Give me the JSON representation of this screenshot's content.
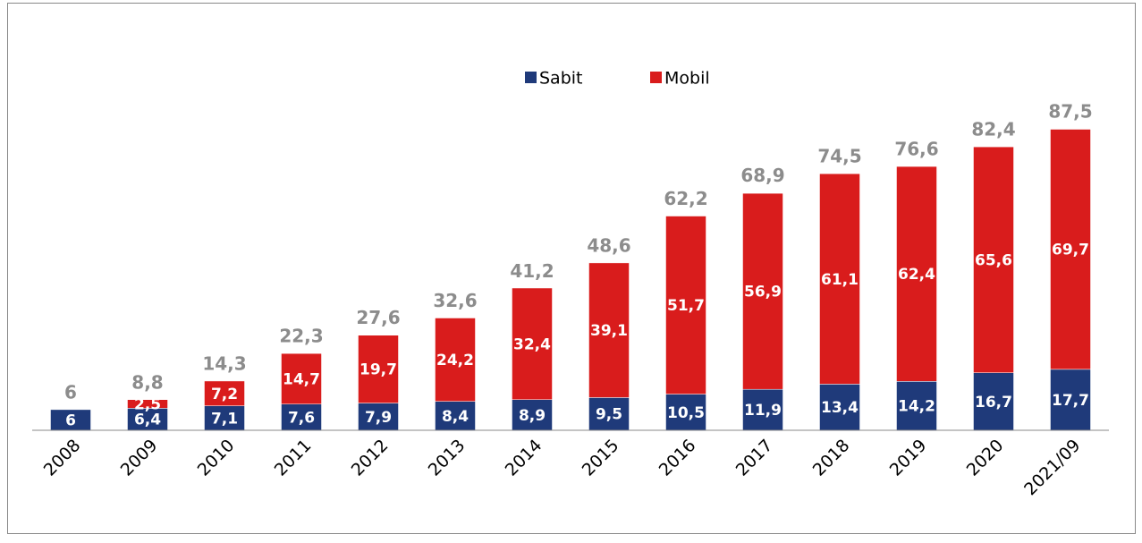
{
  "chart_data": {
    "type": "stacked_bar",
    "categories": [
      "2008",
      "2009",
      "2010",
      "2011",
      "2012",
      "2013",
      "2014",
      "2015",
      "2016",
      "2017",
      "2018",
      "2019",
      "2020",
      "2021/09"
    ],
    "series": [
      {
        "name": "Sabit",
        "color": "#1f3a7a",
        "values": [
          6,
          6.4,
          7.1,
          7.6,
          7.9,
          8.4,
          8.9,
          9.5,
          10.5,
          11.9,
          13.4,
          14.2,
          16.7,
          17.7
        ],
        "value_labels": [
          "6",
          "6,4",
          "7,1",
          "7,6",
          "7,9",
          "8,4",
          "8,9",
          "9,5",
          "10,5",
          "11,9",
          "13,4",
          "14,2",
          "16,7",
          "17,7"
        ]
      },
      {
        "name": "Mobil",
        "color": "#d91c1c",
        "values": [
          null,
          2.5,
          7.2,
          14.7,
          19.7,
          24.2,
          32.4,
          39.1,
          51.7,
          56.9,
          61.1,
          62.4,
          65.6,
          69.7
        ],
        "value_labels": [
          null,
          "2,5",
          "7,2",
          "14,7",
          "19,7",
          "24,2",
          "32,4",
          "39,1",
          "51,7",
          "56,9",
          "61,1",
          "62,4",
          "65,6",
          "69,7"
        ]
      }
    ],
    "totals": {
      "values": [
        6,
        8.8,
        14.3,
        22.3,
        27.6,
        32.6,
        41.2,
        48.6,
        62.2,
        68.9,
        74.5,
        76.6,
        82.4,
        87.5
      ],
      "value_labels": [
        "6",
        "8,8",
        "14,3",
        "22,3",
        "27,6",
        "32,6",
        "41,2",
        "48,6",
        "62,2",
        "68,9",
        "74,5",
        "76,6",
        "82,4",
        "87,5"
      ]
    },
    "ylim": [
      0,
      100
    ],
    "legend": "top"
  }
}
